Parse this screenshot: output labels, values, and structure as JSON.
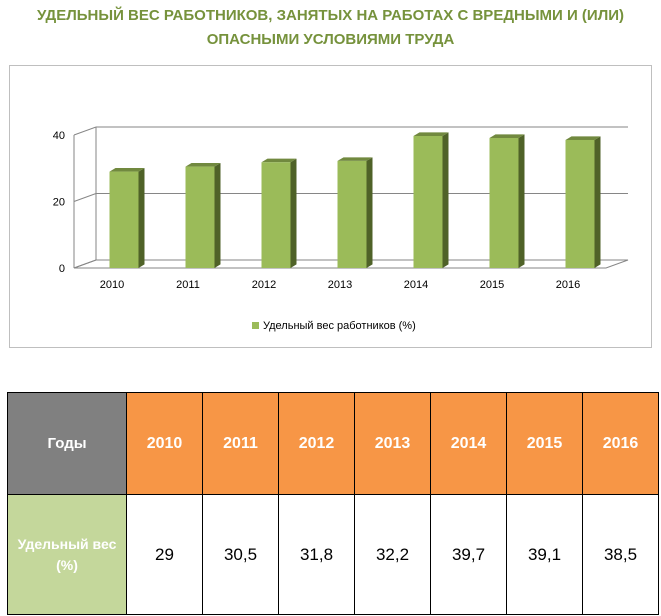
{
  "title_lines": [
    "УДЕЛЬНЫЙ ВЕС РАБОТНИКОВ, ЗАНЯТЫХ НА РАБОТАХ С ВРЕДНЫМИ И (ИЛИ)",
    "ОПАСНЫМИ УСЛОВИЯМИ ТРУДА"
  ],
  "colors": {
    "title": "#76923c",
    "bar_front": "#9bbb59",
    "bar_top": "#71893f",
    "bar_side": "#4f6228",
    "header_gray": "#808080",
    "header_orange": "#f79646",
    "row_green": "#c4d79b"
  },
  "chart_data": {
    "type": "bar",
    "categories": [
      "2010",
      "2011",
      "2012",
      "2013",
      "2014",
      "2015",
      "2016"
    ],
    "series": [
      {
        "name": "Удельный вес работников (%)",
        "values": [
          29,
          30.5,
          31.8,
          32.2,
          39.7,
          39.1,
          38.5
        ]
      }
    ],
    "ylim": [
      0,
      40
    ],
    "yticks": [
      "0",
      "20",
      "40"
    ],
    "grid": true,
    "legend_position": "bottom",
    "three_d": true
  },
  "table": {
    "header_label": "Годы",
    "row_label": "Удельный вес (%)",
    "years": [
      "2010",
      "2011",
      "2012",
      "2013",
      "2014",
      "2015",
      "2016"
    ],
    "values": [
      "29",
      "30,5",
      "31,8",
      "32,2",
      "39,7",
      "39,1",
      "38,5"
    ]
  }
}
